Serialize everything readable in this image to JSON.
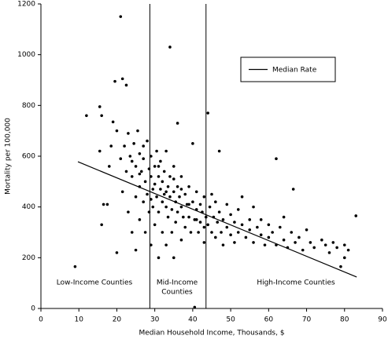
{
  "chart_data": {
    "type": "scatter",
    "xlabel": "Median Household Income, Thousands, $",
    "ylabel": "Mortality per 100,000",
    "xlim": [
      0,
      90
    ],
    "xticks": [
      0,
      10,
      20,
      30,
      40,
      50,
      60,
      70,
      80,
      90
    ],
    "ylim": [
      0,
      1200
    ],
    "yticks": [
      0,
      200,
      400,
      600,
      800,
      1000,
      1200
    ],
    "grid": false,
    "series": [
      {
        "color": "#000000",
        "x": [
          9,
          12,
          15.5,
          16,
          15.5,
          16.5,
          16,
          17.5,
          18,
          18.5,
          19,
          19.5,
          20,
          20,
          21,
          21,
          21.5,
          21.5,
          22,
          22.5,
          22.5,
          23,
          23,
          23.5,
          24,
          24,
          24.5,
          25,
          25,
          25,
          25.5,
          26,
          26,
          26,
          26.5,
          27,
          27,
          27.5,
          27.5,
          28,
          28,
          28.5,
          28.5,
          29,
          29,
          29,
          29.5,
          29.5,
          30,
          30,
          30,
          30.5,
          30.5,
          31,
          31,
          31,
          31.5,
          31.5,
          32,
          32,
          32,
          32.5,
          32.5,
          33,
          33,
          33,
          33.5,
          33.5,
          34,
          34,
          34,
          34.5,
          34.5,
          35,
          35,
          35,
          35.5,
          35.5,
          36,
          36,
          36,
          36.5,
          37,
          37,
          37,
          37.5,
          38,
          38,
          38.5,
          39,
          39,
          39.5,
          40,
          40,
          40.5,
          40.5,
          41,
          41,
          41.5,
          42,
          42,
          42.5,
          43,
          43,
          43.5,
          44,
          44,
          44.5,
          45,
          45,
          45.5,
          46,
          46,
          46.5,
          47,
          47,
          47.5,
          48,
          48,
          49,
          49,
          50,
          50,
          51,
          51,
          52,
          52,
          53,
          53,
          54,
          55,
          55,
          56,
          56,
          57,
          58,
          58,
          59,
          60,
          60,
          61,
          62,
          62,
          63,
          64,
          64,
          65,
          66,
          66.5,
          67,
          68,
          69,
          70,
          71,
          72,
          74,
          75,
          76,
          77,
          78,
          79,
          80,
          80,
          81,
          83,
          24,
          26,
          27,
          29,
          31,
          33,
          35,
          37,
          39,
          41,
          43
        ],
        "values": [
          165,
          760,
          795,
          760,
          620,
          410,
          330,
          410,
          560,
          640,
          735,
          895,
          700,
          220,
          1150,
          590,
          905,
          460,
          640,
          880,
          540,
          690,
          380,
          600,
          520,
          300,
          650,
          560,
          440,
          230,
          700,
          610,
          480,
          350,
          540,
          420,
          590,
          500,
          300,
          660,
          450,
          550,
          380,
          520,
          600,
          250,
          470,
          400,
          560,
          490,
          330,
          620,
          440,
          520,
          380,
          200,
          470,
          580,
          420,
          500,
          300,
          450,
          540,
          400,
          620,
          250,
          480,
          360,
          1030,
          440,
          520,
          390,
          300,
          460,
          560,
          200,
          420,
          340,
          730,
          480,
          380,
          440,
          400,
          520,
          270,
          360,
          450,
          320,
          410,
          480,
          360,
          300,
          420,
          650,
          5,
          350,
          390,
          460,
          300,
          410,
          340,
          380,
          440,
          260,
          360,
          770,
          330,
          400,
          300,
          450,
          360,
          280,
          420,
          340,
          620,
          380,
          300,
          350,
          250,
          410,
          320,
          290,
          370,
          340,
          260,
          390,
          300,
          330,
          440,
          280,
          350,
          310,
          260,
          400,
          320,
          290,
          350,
          250,
          330,
          280,
          300,
          590,
          250,
          320,
          270,
          360,
          240,
          300,
          470,
          260,
          280,
          230,
          310,
          260,
          240,
          270,
          250,
          220,
          260,
          240,
          165,
          200,
          250,
          230,
          365,
          580,
          530,
          640,
          430,
          560,
          460,
          510,
          470,
          410,
          350,
          320
        ]
      }
    ],
    "median_line": {
      "name": "Median Rate",
      "color": "#000000",
      "x": [
        9.75,
        83.2
      ],
      "values": [
        578,
        124
      ]
    },
    "vlines": [
      28.7,
      43.5
    ],
    "legend": "upper-right",
    "annotations": [
      "Low-Income Counties",
      "Mid-Income",
      "Counties",
      "High-Income Counties"
    ]
  }
}
